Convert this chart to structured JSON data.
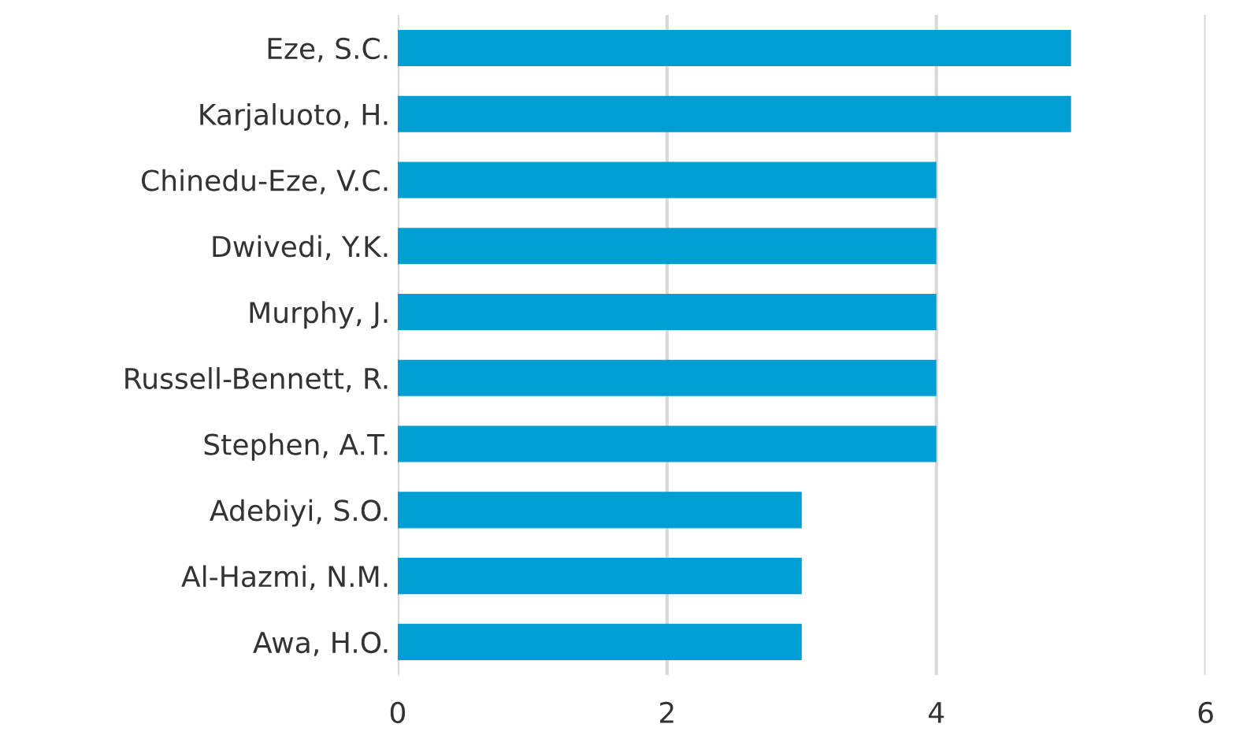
{
  "chart_data": {
    "type": "bar",
    "orientation": "horizontal",
    "categories": [
      "Eze, S.C.",
      "Karjaluoto, H.",
      "Chinedu-Eze, V.C.",
      "Dwivedi, Y.K.",
      "Murphy, J.",
      "Russell-Bennett, R.",
      "Stephen, A.T.",
      "Adebiyi, S.O.",
      "Al-Hazmi, N.M.",
      "Awa, H.O."
    ],
    "values": [
      5,
      5,
      4,
      4,
      4,
      4,
      4,
      3,
      3,
      3
    ],
    "color": "#009fd3",
    "xlim": [
      0,
      6
    ],
    "xticks": [
      0,
      2,
      4,
      6
    ],
    "grid": "x"
  }
}
